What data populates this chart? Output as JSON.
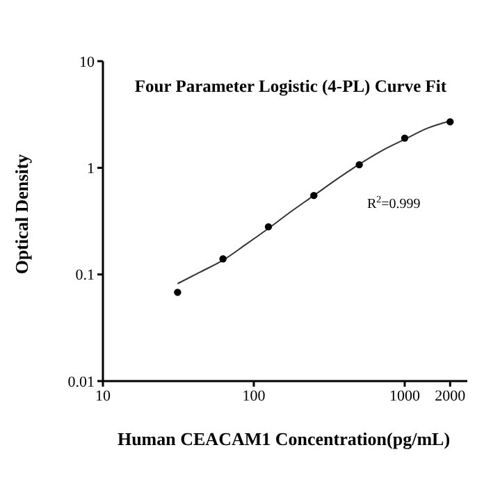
{
  "chart_data": {
    "type": "scatter",
    "title": "Four Parameter Logistic (4-PL) Curve Fit",
    "xlabel": "Human CEACAM1 Concentration(pg/mL)",
    "ylabel": "Optical Density",
    "series": [
      {
        "color": "#000000",
        "marker": "circle",
        "x": [
          31.25,
          62.5,
          125,
          250,
          500,
          1000,
          2000
        ],
        "values": [
          0.068,
          0.14,
          0.28,
          0.55,
          1.07,
          1.9,
          2.7
        ]
      },
      {
        "type": "line",
        "color": "#333333",
        "marker": "none",
        "x": [
          31.25,
          44,
          62.5,
          88,
          125,
          177,
          250,
          354,
          500,
          707,
          1000,
          1414,
          2000
        ],
        "values": [
          0.082,
          0.105,
          0.136,
          0.19,
          0.27,
          0.39,
          0.55,
          0.78,
          1.08,
          1.45,
          1.85,
          2.35,
          2.75
        ]
      }
    ],
    "annotations": [
      "R$^{2}$=0.999"
    ],
    "log": "xy",
    "xlim": [
      10,
      2600
    ],
    "xticks": [
      10,
      100,
      1000,
      2000
    ],
    "ylim": [
      0.01,
      10
    ],
    "yticks": [
      0.01,
      0.1,
      1,
      10
    ]
  }
}
